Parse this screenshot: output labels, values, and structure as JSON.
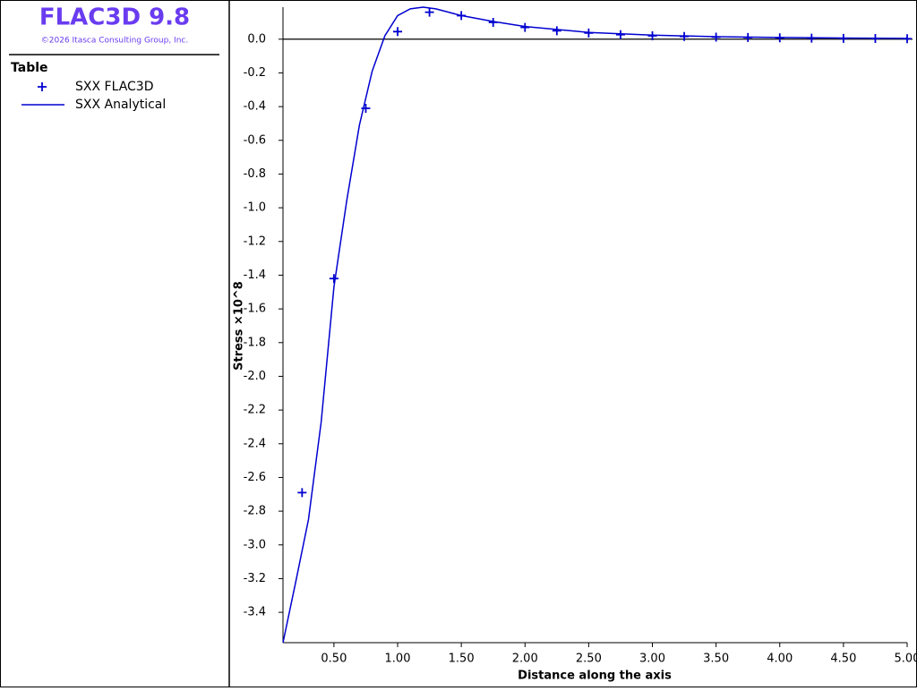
{
  "app": {
    "title": "FLAC3D 9.8",
    "copyright": "©2026 Itasca Consulting Group, Inc.",
    "legend_title": "Table"
  },
  "chart_data": {
    "type": "line",
    "x_label": "Distance along the axis",
    "y_label": "Stress ×10^8",
    "xlim": [
      0.1,
      5.0
    ],
    "ylim": [
      -3.58,
      0.19
    ],
    "xticks": [
      {
        "value": 0.5,
        "label": "0.50"
      },
      {
        "value": 1,
        "label": "1.00"
      },
      {
        "value": 1.5,
        "label": "1.50"
      },
      {
        "value": 2,
        "label": "2.00"
      },
      {
        "value": 2.5,
        "label": "2.50"
      },
      {
        "value": 3,
        "label": "3.00"
      },
      {
        "value": 3.5,
        "label": "3.50"
      },
      {
        "value": 4,
        "label": "4.00"
      },
      {
        "value": 4.5,
        "label": "4.50"
      },
      {
        "value": 5,
        "label": "5.00"
      }
    ],
    "yticks": [
      {
        "value": 0,
        "label": "0.0"
      },
      -0.2,
      -0.4,
      -0.6,
      -0.8,
      {
        "value": -1,
        "label": "-1.0"
      },
      -1.2,
      -1.4,
      -1.6,
      -1.8,
      {
        "value": -2,
        "label": "-2.0"
      },
      -2.2,
      -2.4,
      -2.6,
      -2.8,
      {
        "value": -3,
        "label": "-3.0"
      },
      -3.2,
      -3.4
    ],
    "series": [
      {
        "name": "SXX FLAC3D",
        "color": "#0000d0",
        "marker": "plus",
        "x": [
          0.25,
          0.5,
          0.75,
          1.0,
          1.25,
          1.5,
          1.75,
          2.0,
          2.25,
          2.5,
          2.75,
          3.0,
          3.25,
          3.5,
          3.75,
          4.0,
          4.25,
          4.5,
          4.75,
          5.0
        ],
        "values": [
          -2.69,
          -1.42,
          -0.41,
          0.045,
          0.16,
          0.14,
          0.1,
          0.07,
          0.05,
          0.037,
          0.027,
          0.02,
          0.016,
          0.012,
          0.01,
          0.008,
          0.006,
          0.005,
          0.004,
          0.003
        ]
      },
      {
        "name": "SXX Analytical",
        "color": "#0000d0",
        "marker": "line",
        "x": [
          0.1,
          0.2,
          0.3,
          0.4,
          0.5,
          0.6,
          0.7,
          0.8,
          0.9,
          1.0,
          1.1,
          1.2,
          1.3,
          1.4,
          1.5,
          1.75,
          2.0,
          2.5,
          3.0,
          3.5,
          4.0,
          4.5,
          5.0
        ],
        "values": [
          -3.58,
          -3.22,
          -2.85,
          -2.27,
          -1.47,
          -0.96,
          -0.51,
          -0.19,
          0.02,
          0.14,
          0.18,
          0.19,
          0.18,
          0.16,
          0.14,
          0.105,
          0.075,
          0.04,
          0.024,
          0.015,
          0.01,
          0.007,
          0.005
        ]
      }
    ]
  }
}
